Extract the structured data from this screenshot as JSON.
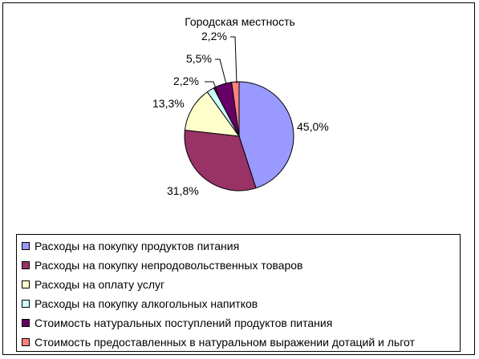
{
  "chart_data": {
    "type": "pie",
    "title": "Городская местность",
    "slices": [
      {
        "label": "Расходы на покупку продуктов питания",
        "value": 45.0,
        "value_label": "45,0%",
        "color": "#9999FF"
      },
      {
        "label": "Расходы на покупку непродовольственных товаров",
        "value": 31.8,
        "value_label": "31,8%",
        "color": "#993366"
      },
      {
        "label": "Расходы на оплату услуг",
        "value": 13.3,
        "value_label": "13,3%",
        "color": "#FFFFCC"
      },
      {
        "label": "Расходы на покупку алкогольных напитков",
        "value": 2.2,
        "value_label": "2,2%",
        "color": "#CCFFFF"
      },
      {
        "label": "Стоимость натуральных поступлений продуктов питания",
        "value": 5.5,
        "value_label": "5,5%",
        "color": "#660066"
      },
      {
        "label": "Стоимость предоставленных в натуральном выражении дотаций и льгот",
        "value": 2.2,
        "value_label": "2,2%",
        "color": "#FF8080"
      }
    ],
    "start_angle": "12 o'clock",
    "direction": "clockwise",
    "legend_position": "bottom"
  }
}
